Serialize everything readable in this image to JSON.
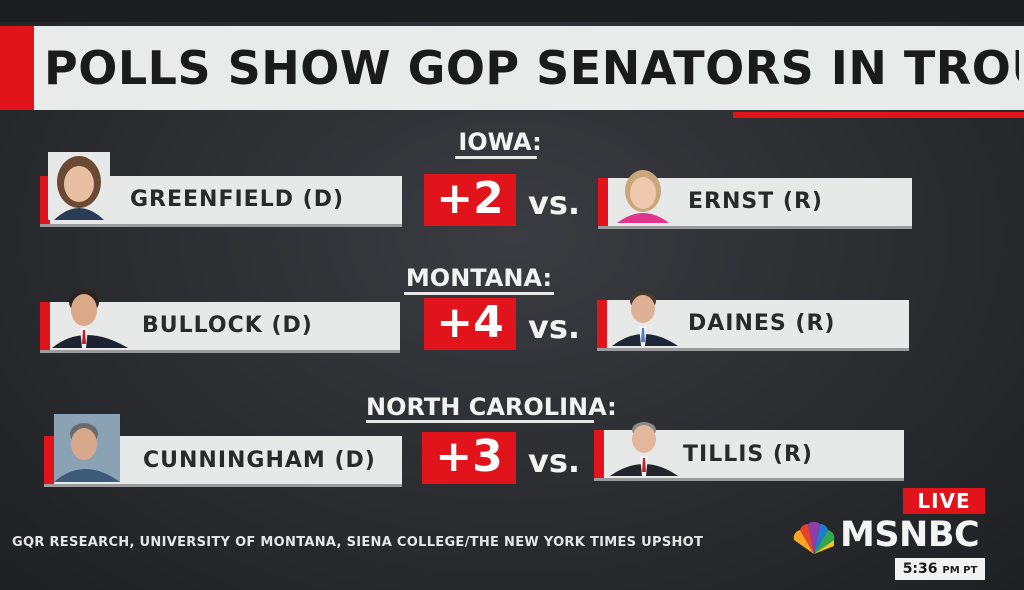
{
  "title": "POLLS SHOW GOP SENATORS IN TROUBLE",
  "races": [
    {
      "state": "IOWA:",
      "dem": {
        "name": "GREENFIELD (D)"
      },
      "margin": "+2",
      "vs": "vs.",
      "rep": {
        "name": "ERNST (R)"
      }
    },
    {
      "state": "MONTANA:",
      "dem": {
        "name": "BULLOCK (D)"
      },
      "margin": "+4",
      "vs": "vs.",
      "rep": {
        "name": "DAINES (R)"
      }
    },
    {
      "state": "NORTH CAROLINA:",
      "dem": {
        "name": "CUNNINGHAM (D)"
      },
      "margin": "+3",
      "vs": "vs.",
      "rep": {
        "name": "TILLIS (R)"
      }
    }
  ],
  "source": "GQR RESEARCH, UNIVERSITY OF MONTANA, SIENA COLLEGE/THE NEW YORK TIMES UPSHOT",
  "badge": {
    "live": "LIVE",
    "network": "MSNBC",
    "time": "5:36",
    "zone": "PM PT"
  },
  "colors": {
    "accent": "#e1141b",
    "card": "#e7e8e8",
    "background": "#2b2d31"
  }
}
